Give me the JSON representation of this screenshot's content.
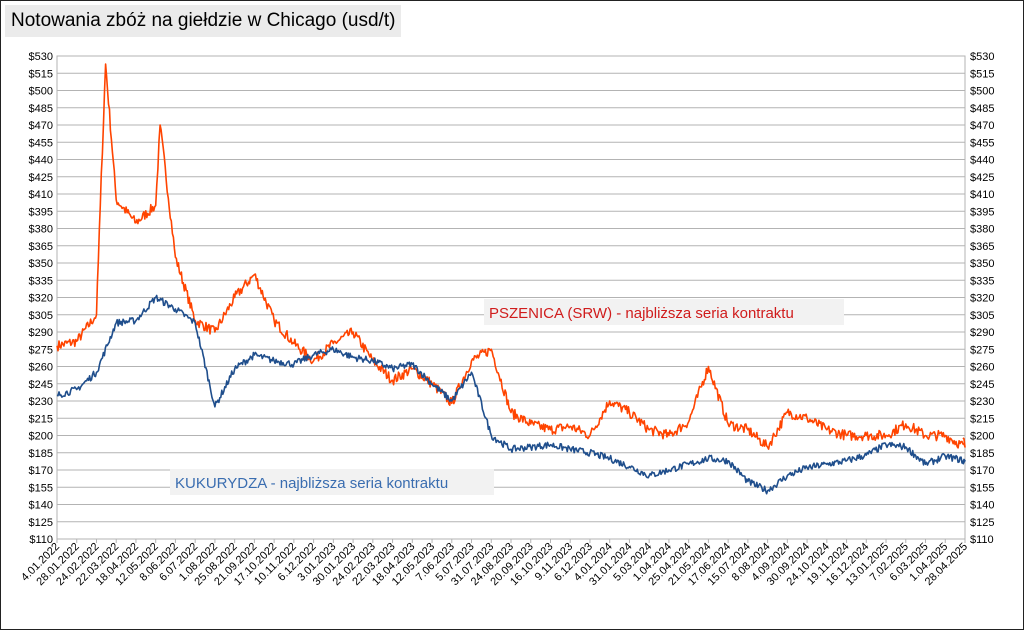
{
  "chart_data": {
    "type": "line",
    "title": "Notowania zbóż na giełdzie w Chicago (usd/t)",
    "ylim": [
      110,
      530
    ],
    "y_ticks": [
      "$110",
      "$125",
      "$140",
      "$155",
      "$170",
      "$185",
      "$200",
      "$215",
      "$230",
      "$245",
      "$260",
      "$275",
      "$290",
      "$305",
      "$320",
      "$335",
      "$350",
      "$365",
      "$380",
      "$395",
      "$410",
      "$425",
      "$440",
      "$455",
      "$470",
      "$485",
      "$500",
      "$515",
      "$530"
    ],
    "x_tick_labels": [
      "4.01.2022",
      "28.01.2022",
      "24.02.2022",
      "22.03.2022",
      "18.04.2022",
      "12.05.2022",
      "8.06.2022",
      "6.07.2022",
      "1.08.2022",
      "25.08.2022",
      "21.09.2022",
      "17.10.2022",
      "10.11.2022",
      "6.12.2022",
      "3.01.2023",
      "30.01.2023",
      "24.02.2023",
      "22.03.2023",
      "18.04.2023",
      "12.05.2023",
      "7.06.2023",
      "5.07.2023",
      "31.07.2023",
      "24.08.2023",
      "20.09.2023",
      "16.10.2023",
      "9.11.2023",
      "6.12.2023",
      "4.01.2024",
      "31.01.2024",
      "5.03.2024",
      "1.04.2024",
      "25.04.2024",
      "21.05.2024",
      "17.06.2024",
      "15.07.2024",
      "8.08.2024",
      "4.09.2024",
      "30.09.2024",
      "24.10.2024",
      "19.11.2024",
      "16.12.2024",
      "13.01.2025",
      "7.02.2025",
      "6.03.2025",
      "1.04.2025",
      "28.04.2025"
    ],
    "grid": true,
    "series": [
      {
        "name": "PSZENICA (SRW) - najbliższa seria kontraktu",
        "color": "#ff4400",
        "x": [
          "4.01.2022",
          "28.01.2022",
          "24.02.2022",
          "1.03.2022",
          "8.03.2022",
          "22.03.2022",
          "18.04.2022",
          "12.05.2022",
          "18.05.2022",
          "8.06.2022",
          "6.07.2022",
          "1.08.2022",
          "25.08.2022",
          "21.09.2022",
          "17.10.2022",
          "10.11.2022",
          "6.12.2022",
          "3.01.2023",
          "30.01.2023",
          "24.02.2023",
          "22.03.2023",
          "18.04.2023",
          "12.05.2023",
          "7.06.2023",
          "5.07.2023",
          "31.07.2023",
          "24.08.2023",
          "20.09.2023",
          "16.10.2023",
          "9.11.2023",
          "6.12.2023",
          "4.01.2024",
          "31.01.2024",
          "5.03.2024",
          "1.04.2024",
          "25.04.2024",
          "21.05.2024",
          "17.06.2024",
          "15.07.2024",
          "8.08.2024",
          "4.09.2024",
          "30.09.2024",
          "24.10.2024",
          "19.11.2024",
          "16.12.2024",
          "13.01.2025",
          "7.02.2025",
          "6.03.2025",
          "1.04.2025",
          "28.04.2025",
          "15.05.2025"
        ],
        "values": [
          278,
          282,
          305,
          400,
          523,
          405,
          385,
          400,
          470,
          355,
          300,
          290,
          320,
          340,
          300,
          280,
          265,
          280,
          290,
          265,
          248,
          258,
          245,
          228,
          265,
          275,
          220,
          210,
          205,
          208,
          200,
          230,
          220,
          205,
          200,
          212,
          260,
          210,
          205,
          190,
          220,
          215,
          205,
          200,
          200,
          200,
          210,
          200,
          200,
          190,
          198
        ]
      },
      {
        "name": "KUKURYDZA - najbliższa seria kontraktu",
        "color": "#1f4e8c",
        "x": [
          "4.01.2022",
          "28.01.2022",
          "24.02.2022",
          "22.03.2022",
          "18.04.2022",
          "12.05.2022",
          "8.06.2022",
          "6.07.2022",
          "1.08.2022",
          "25.08.2022",
          "21.09.2022",
          "17.10.2022",
          "10.11.2022",
          "6.12.2022",
          "3.01.2023",
          "30.01.2023",
          "24.02.2023",
          "22.03.2023",
          "18.04.2023",
          "12.05.2023",
          "7.06.2023",
          "5.07.2023",
          "31.07.2023",
          "24.08.2023",
          "20.09.2023",
          "16.10.2023",
          "9.11.2023",
          "6.12.2023",
          "4.01.2024",
          "31.01.2024",
          "5.03.2024",
          "1.04.2024",
          "25.04.2024",
          "21.05.2024",
          "17.06.2024",
          "15.07.2024",
          "8.08.2024",
          "4.09.2024",
          "30.09.2024",
          "24.10.2024",
          "19.11.2024",
          "16.12.2024",
          "13.01.2025",
          "7.02.2025",
          "6.03.2025",
          "1.04.2025",
          "28.04.2025",
          "15.05.2025"
        ],
        "values": [
          235,
          240,
          255,
          298,
          300,
          320,
          310,
          298,
          225,
          258,
          270,
          265,
          262,
          270,
          275,
          268,
          265,
          258,
          262,
          245,
          230,
          255,
          200,
          188,
          190,
          192,
          188,
          185,
          180,
          173,
          165,
          170,
          175,
          180,
          178,
          160,
          152,
          165,
          172,
          175,
          178,
          183,
          192,
          190,
          175,
          182,
          178,
          175
        ]
      }
    ],
    "annotations": [
      {
        "text": "PSZENICA (SRW) - najbliższa seria kontraktu",
        "color": "#d01c1c"
      },
      {
        "text": "KUKURYDZA - najbliższa seria kontraktu",
        "color": "#3a6db0"
      }
    ]
  }
}
